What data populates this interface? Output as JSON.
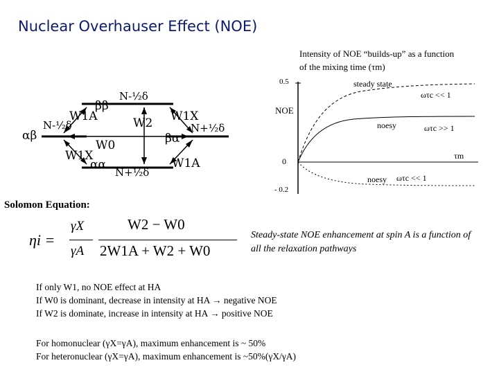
{
  "title": "Nuclear Overhauser Effect (NOE)",
  "graph_caption": "Intensity of NOE “builds-up” as a function of the mixing time (τm)",
  "energy_diagram": {
    "state_bb": "ββ",
    "state_ab": "αβ",
    "state_ba": "βα",
    "state_aa": "αα",
    "top_label": "N-½δ",
    "left_label": "N-½δ",
    "right_label": "N+½δ",
    "bottom_label": "N+½δ",
    "w1a_left": "W1A",
    "w1x_left": "W1X",
    "w2": "W2",
    "w0": "W0",
    "w1x_right": "W1X",
    "w1a_right": "W1A"
  },
  "noe_plot": {
    "y_top": "0.5",
    "y_zero": "0",
    "y_bottom": "- 0.2",
    "y_axis_label": "NOE",
    "x_axis_label": "τm",
    "curve_top": "steady state",
    "cond_top": "ωτc << 1",
    "curve_mid": "noesy",
    "cond_mid": "ωτc >> 1",
    "curve_bottom": "noesy",
    "cond_bottom": "ωτc << 1"
  },
  "solomon_label": "Solomon Equation:",
  "equation": {
    "lhs": "ηi =",
    "gamma_x": "γX",
    "gamma_a": "γA",
    "numerator": "W2 − W0",
    "denominator": "2W1A + W2 + W0"
  },
  "steady_state_text": "Steady-state NOE enhancement at spin A is a function of all the relaxation pathways",
  "rules": [
    "If only W1, no NOE effect at HA",
    "If W0 is dominant, decrease in intensity at HA → negative NOE",
    "If W2 is dominate, increase in intensity at HA → positive NOE"
  ],
  "enhancement": [
    "For homonuclear (γX=γA), maximum enhancement is ~ 50%",
    "For heteronuclear (γX=γA), maximum enhancement is ~50%(γX/γA)"
  ]
}
